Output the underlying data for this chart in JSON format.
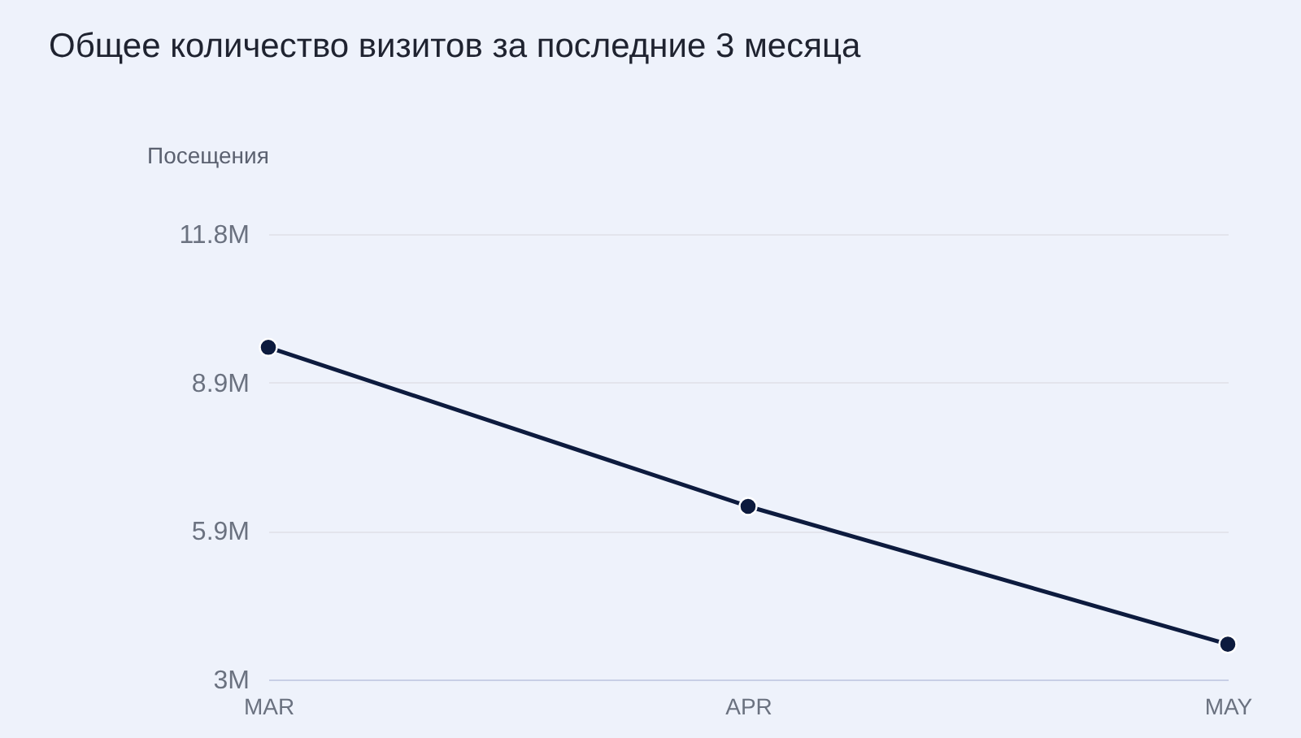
{
  "chart_data": {
    "type": "line",
    "title": "Общее количество визитов за последние 3 месяца",
    "ylabel": "Посещения",
    "categories": [
      "MAR",
      "APR",
      "MAY"
    ],
    "series": [
      {
        "color": "#0d1b3e",
        "values": [
          9550000,
          6390000,
          3650000
        ]
      }
    ],
    "ylim": [
      2950000,
      11800000
    ],
    "yticks": [
      {
        "value": 2950000,
        "label": "3M"
      },
      {
        "value": 5900000,
        "label": "5.9M"
      },
      {
        "value": 8850000,
        "label": "8.9M"
      },
      {
        "value": 11800000,
        "label": "11.8M"
      }
    ],
    "grid": "y",
    "marker": "circle",
    "line_style": "solid",
    "legend": false
  }
}
